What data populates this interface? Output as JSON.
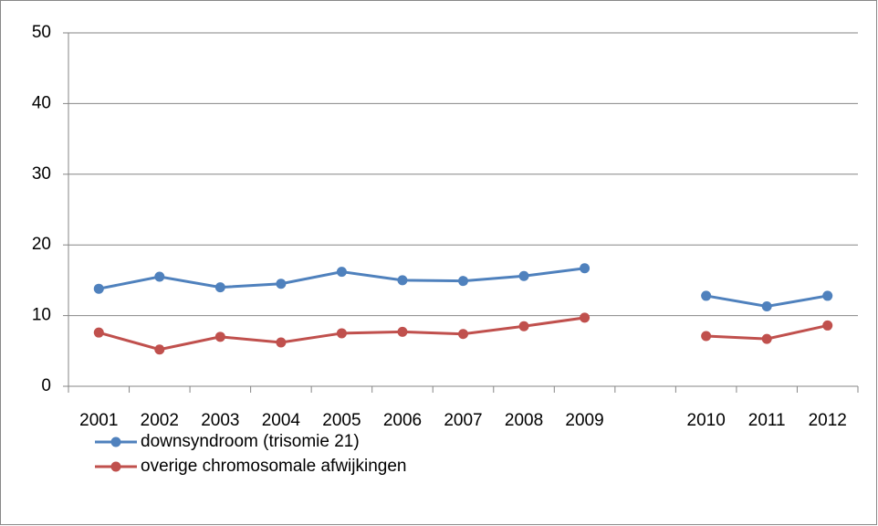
{
  "chart_data": {
    "type": "line",
    "categories": [
      "2001",
      "2002",
      "2003",
      "2004",
      "2005",
      "2006",
      "2007",
      "2008",
      "2009",
      null,
      "2010",
      "2011",
      "2012"
    ],
    "series": [
      {
        "name": "downsyndroom (trisomie 21)",
        "color": "#4f81bd",
        "values": [
          13.8,
          15.5,
          14.0,
          14.5,
          16.2,
          15.0,
          14.9,
          15.6,
          16.7,
          null,
          12.8,
          11.3,
          12.8
        ]
      },
      {
        "name": "overige chromosomale afwijkingen",
        "color": "#c0504d",
        "values": [
          7.6,
          5.2,
          7.0,
          6.2,
          7.5,
          7.7,
          7.4,
          8.5,
          9.7,
          null,
          7.1,
          6.7,
          8.6
        ]
      }
    ],
    "ylim": [
      0,
      50
    ],
    "yticks": [
      0,
      10,
      20,
      30,
      40,
      50
    ],
    "grid": true,
    "legend": "bottom-left"
  }
}
